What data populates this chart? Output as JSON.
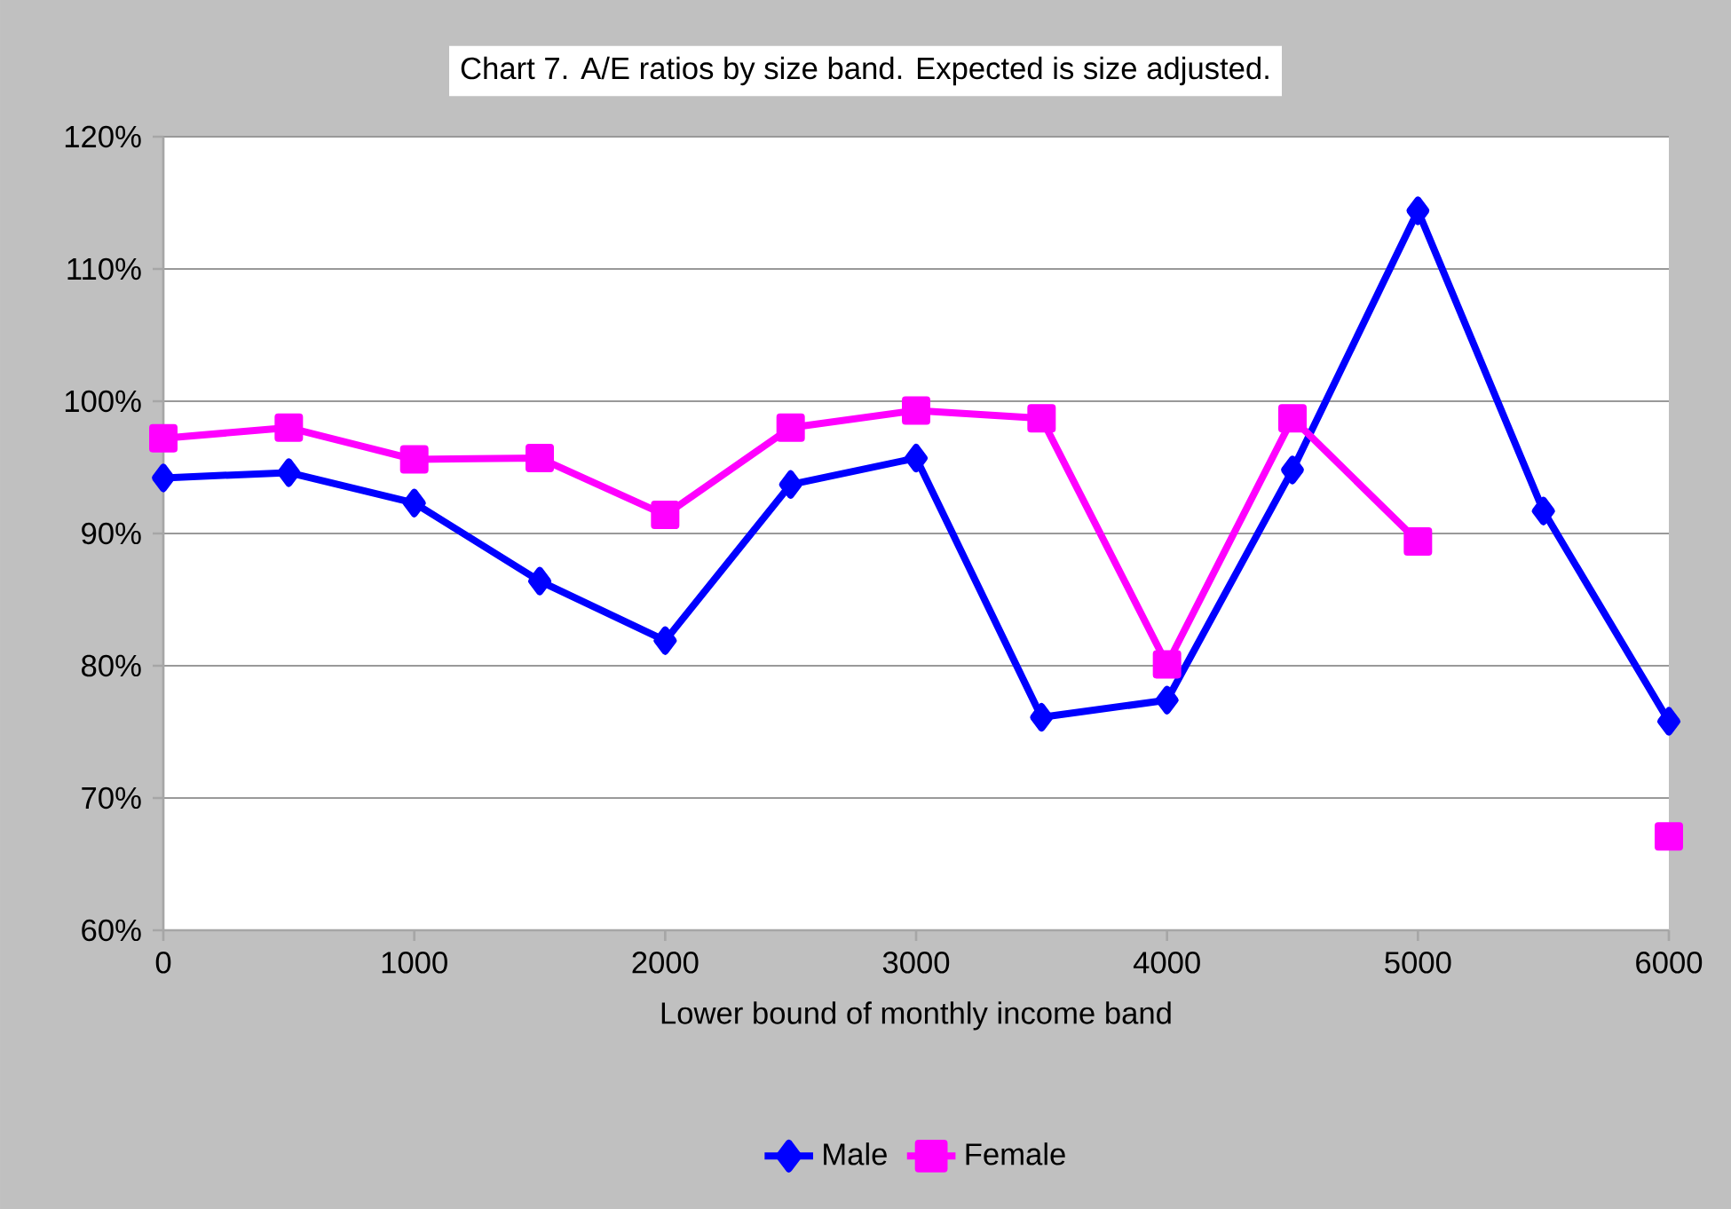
{
  "chart_data": {
    "type": "line",
    "title": "Chart 7. A/E ratios by size band. Expected is size adjusted.",
    "xlabel": "Lower bound of monthly income band",
    "x": [
      0,
      500,
      1000,
      1500,
      2000,
      2500,
      3000,
      3500,
      4000,
      4500,
      5000,
      5500,
      6000
    ],
    "series": [
      {
        "name": "Male",
        "color": "#0000ff",
        "marker": "diamond",
        "values": [
          94.2,
          94.6,
          92.3,
          86.4,
          81.9,
          93.7,
          95.7,
          76.1,
          77.4,
          94.8,
          114.4,
          91.7,
          75.8
        ]
      },
      {
        "name": "Female",
        "color": "#ff00ff",
        "marker": "square",
        "values": [
          97.2,
          98.0,
          95.6,
          95.7,
          91.4,
          98.0,
          99.3,
          98.7,
          80.1,
          98.7,
          89.4,
          null,
          67.1
        ]
      }
    ],
    "xlim": [
      0,
      6000
    ],
    "xticks": [
      0,
      1000,
      2000,
      3000,
      4000,
      5000,
      6000
    ],
    "ylim": [
      60,
      120
    ],
    "yticks": [
      {
        "value": 60,
        "label": "60%"
      },
      {
        "value": 70,
        "label": "70%"
      },
      {
        "value": 80,
        "label": "80%"
      },
      {
        "value": 90,
        "label": "90%"
      },
      {
        "value": 100,
        "label": "100%"
      },
      {
        "value": 110,
        "label": "110%"
      },
      {
        "value": 120,
        "label": "120%"
      }
    ],
    "grid": "y",
    "legend": "bottom",
    "line_style": "solid"
  }
}
